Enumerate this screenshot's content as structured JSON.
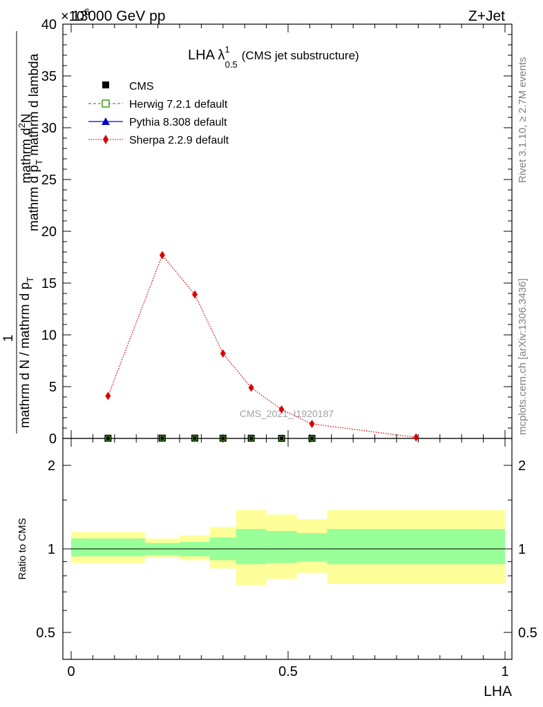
{
  "header": {
    "left_title": "13000 GeV pp",
    "right_title": "Z+Jet",
    "exponent_label": "×10",
    "exponent_power": "6"
  },
  "plot_title": {
    "main": "LHA λ",
    "sup": "1",
    "sub": "0.5",
    "suffix": "(CMS jet substructure)"
  },
  "side_labels": {
    "rivet": "Rivet 3.1.10, ≥ 2.7M events",
    "mcplots": "mcplots.cern.ch [arXiv:1306.3436]"
  },
  "watermark": "CMS_2021_I1920187",
  "colors": {
    "cms": "#000000",
    "herwig": "#4a9a1a",
    "pythia": "#0000cc",
    "sherpa": "#dd0000",
    "band_inner": "#99ff99",
    "band_outer": "#ffff99"
  },
  "chart_data": [
    {
      "type": "line",
      "panel": "main",
      "ylabel_parts": {
        "numer_one": "1",
        "numer_main": "mathrm d",
        "numer_sup": "2",
        "numer_tail": "N",
        "denom_left": "mathrm d N / mathrm d p",
        "denom_left_sub": "T",
        "denom_mid": "mathrm d p",
        "denom_mid_sub": "T",
        "denom_tail": " mathrm d lambda"
      },
      "xlim": [
        0,
        1
      ],
      "ylim": [
        0,
        40
      ],
      "y_scale_label": "×10^6",
      "yticks": [
        "0",
        "5",
        "10",
        "15",
        "20",
        "25",
        "30",
        "35",
        "40"
      ],
      "ytick_values": [
        0,
        5,
        10,
        15,
        20,
        25,
        30,
        35,
        40
      ],
      "legend": [
        {
          "name": "CMS",
          "style": "marker-square"
        },
        {
          "name": "Herwig 7.2.1 default",
          "style": "dashed-open-square"
        },
        {
          "name": "Pythia 8.308 default",
          "style": "solid-triangle"
        },
        {
          "name": "Sherpa 2.2.9 default",
          "style": "dotted-diamond"
        }
      ],
      "series": [
        {
          "name": "CMS",
          "x": [
            0.085,
            0.21,
            0.285,
            0.35,
            0.415,
            0.485,
            0.555
          ],
          "y": [
            0.02,
            0.03,
            0.03,
            0.02,
            0.02,
            0.01,
            0.01
          ]
        },
        {
          "name": "Sherpa 2.2.9 default",
          "x": [
            0.085,
            0.21,
            0.285,
            0.35,
            0.415,
            0.485,
            0.555,
            0.795
          ],
          "y": [
            4.1,
            17.7,
            13.9,
            8.2,
            4.9,
            2.8,
            1.4,
            0.1
          ]
        }
      ]
    },
    {
      "type": "area",
      "panel": "ratio",
      "ylabel": "Ratio to CMS",
      "xlabel": "LHA",
      "xlim": [
        0,
        1
      ],
      "xticks": [
        "0",
        "0.5",
        "1"
      ],
      "xtick_values": [
        0,
        0.5,
        1
      ],
      "yticks": [
        "0.5",
        "1",
        "2"
      ],
      "ytick_values": [
        0.5,
        1,
        2
      ],
      "ylim": [
        0.4,
        2.25
      ],
      "y_scale": "log",
      "bins": [
        {
          "x0": 0.0,
          "x1": 0.17,
          "inner": [
            0.94,
            1.09
          ],
          "outer": [
            0.89,
            1.15
          ]
        },
        {
          "x0": 0.17,
          "x1": 0.25,
          "inner": [
            0.95,
            1.05
          ],
          "outer": [
            0.93,
            1.09
          ]
        },
        {
          "x0": 0.25,
          "x1": 0.32,
          "inner": [
            0.94,
            1.06
          ],
          "outer": [
            0.91,
            1.12
          ]
        },
        {
          "x0": 0.32,
          "x1": 0.38,
          "inner": [
            0.91,
            1.1
          ],
          "outer": [
            0.85,
            1.2
          ]
        },
        {
          "x0": 0.38,
          "x1": 0.45,
          "inner": [
            0.88,
            1.18
          ],
          "outer": [
            0.74,
            1.38
          ]
        },
        {
          "x0": 0.45,
          "x1": 0.52,
          "inner": [
            0.89,
            1.16
          ],
          "outer": [
            0.78,
            1.33
          ]
        },
        {
          "x0": 0.52,
          "x1": 0.59,
          "inner": [
            0.9,
            1.14
          ],
          "outer": [
            0.82,
            1.28
          ]
        },
        {
          "x0": 0.59,
          "x1": 1.0,
          "inner": [
            0.88,
            1.18
          ],
          "outer": [
            0.75,
            1.38
          ]
        }
      ]
    }
  ]
}
